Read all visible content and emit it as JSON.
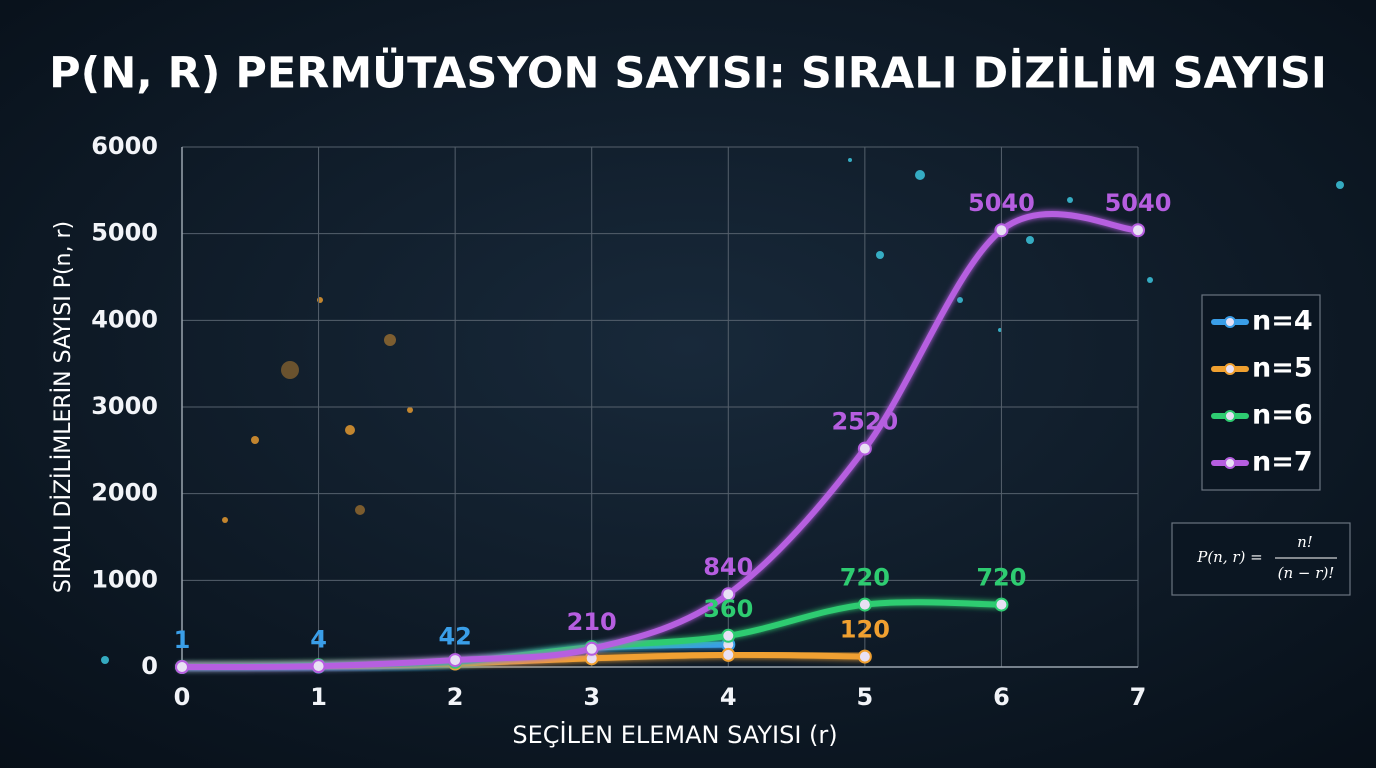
{
  "chart_data": {
    "type": "line",
    "title": "P(N, R) PERMÜTASYON SAYISI: SIRALI DİZİLİM SAYISI",
    "x_label": "SEÇİLEN ELEMAN SAYISI (r)",
    "y_label": "SIRALI DİZİLİMLERİN SAYISI P(n, r)",
    "x": [
      0,
      1,
      2,
      3,
      4,
      5,
      6,
      7
    ],
    "xlim": [
      0,
      7
    ],
    "xticks": [
      0,
      1,
      2,
      3,
      4,
      5,
      6,
      7
    ],
    "ylim": [
      0,
      6000
    ],
    "yticks": [
      0,
      1000,
      2000,
      3000,
      4000,
      5000,
      6000
    ],
    "grid": true,
    "legend": "right",
    "series": [
      {
        "name": "n=4",
        "color": "#3a9ee8",
        "values": [
          1,
          4,
          42,
          220,
          260,
          null,
          null,
          null
        ],
        "value_labels": [
          "1",
          "4",
          "42",
          null,
          null,
          null,
          null,
          null
        ]
      },
      {
        "name": "n=5",
        "color": "#f0a030",
        "values": [
          0,
          10,
          40,
          100,
          140,
          120,
          null,
          null
        ],
        "value_labels": [
          null,
          null,
          null,
          null,
          null,
          "120",
          null,
          null
        ]
      },
      {
        "name": "n=6",
        "color": "#2ecc71",
        "values": [
          0,
          20,
          60,
          230,
          360,
          720,
          720,
          null
        ],
        "value_labels": [
          null,
          null,
          null,
          null,
          "360",
          "720",
          "720",
          null
        ]
      },
      {
        "name": "n=7",
        "color": "#b65ee0",
        "values": [
          0,
          10,
          80,
          210,
          840,
          2520,
          5040,
          5040
        ],
        "value_labels": [
          null,
          null,
          null,
          "210",
          "840",
          "2520",
          "5040",
          "5040"
        ]
      }
    ],
    "formula": {
      "lhs": "P(n, r) =",
      "numerator": "n!",
      "denominator": "(n − r)!"
    }
  }
}
